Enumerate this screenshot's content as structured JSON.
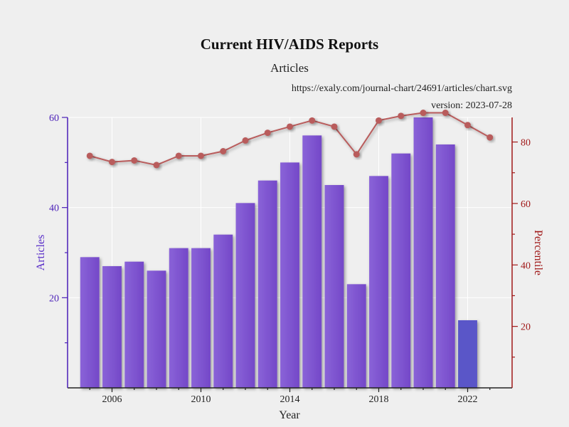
{
  "chart_data": {
    "type": "bar",
    "title": "Current HIV/AIDS Reports",
    "subtitle": "Articles",
    "source_url": "https://exaly.com/journal-chart/24691/articles/chart.svg",
    "version_label": "version: 2023-07-28",
    "xlabel": "Year",
    "ylabel_left": "Articles",
    "ylabel_right": "Percentile",
    "xlim": [
      2004,
      2024
    ],
    "ylim_left": [
      0,
      60
    ],
    "ylim_right": [
      0,
      88
    ],
    "x_ticks": [
      2006,
      2010,
      2014,
      2018,
      2022
    ],
    "y_ticks_left": [
      20,
      40,
      60
    ],
    "y_ticks_right": [
      20,
      40,
      60,
      80
    ],
    "grid": true,
    "colors": {
      "bar": "#7b52cf",
      "bar_last": "#5a56c8",
      "line": "#b95c5c",
      "left_axis": "#4a1fb8",
      "right_axis": "#a01818",
      "x_axis": "#222222",
      "grid": "#ffffff"
    },
    "bars": {
      "name": "Articles",
      "x": [
        2005,
        2006,
        2007,
        2008,
        2009,
        2010,
        2011,
        2012,
        2013,
        2014,
        2015,
        2016,
        2017,
        2018,
        2019,
        2020,
        2021,
        2022
      ],
      "values": [
        29,
        27,
        28,
        26,
        31,
        31,
        34,
        41,
        46,
        50,
        56,
        45,
        23,
        47,
        52,
        60,
        54,
        15
      ]
    },
    "line": {
      "name": "Percentile",
      "x": [
        2005,
        2006,
        2007,
        2008,
        2009,
        2010,
        2011,
        2012,
        2013,
        2014,
        2015,
        2016,
        2017,
        2018,
        2019,
        2020,
        2021,
        2022,
        2023
      ],
      "values": [
        75.5,
        73.5,
        74,
        72.5,
        75.5,
        75.5,
        77,
        80.5,
        83,
        85,
        87,
        85,
        76,
        87,
        88.5,
        89.5,
        89.5,
        85.5,
        81.5
      ]
    }
  }
}
